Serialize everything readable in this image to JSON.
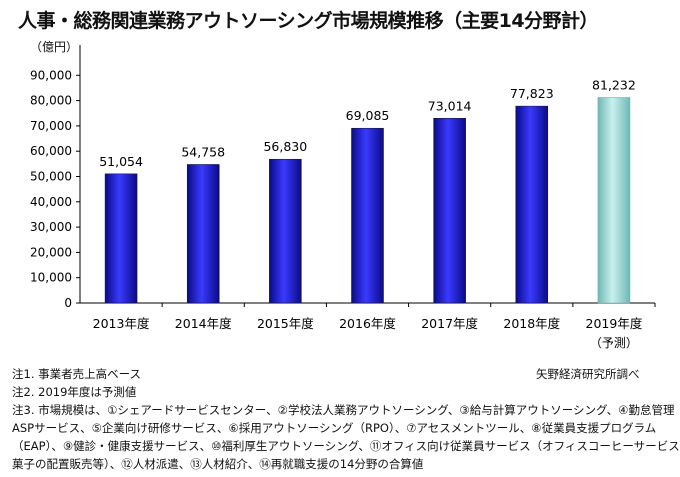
{
  "chart_data": {
    "type": "bar",
    "title": "人事・総務関連業務アウトソーシング市場規模推移（主要14分野計）",
    "ylabel": "（億円）",
    "ylim": [
      0,
      100000
    ],
    "yticks": [
      "0",
      "10,000",
      "20,000",
      "30,000",
      "40,000",
      "50,000",
      "60,000",
      "70,000",
      "80,000",
      "90,000"
    ],
    "categories": [
      "2013年度",
      "2014年度",
      "2015年度",
      "2016年度",
      "2017年度",
      "2018年度",
      "2019年度"
    ],
    "values": [
      51054,
      54758,
      56830,
      69085,
      73014,
      77823,
      81232
    ],
    "data_labels": [
      "51,054",
      "54,758",
      "56,830",
      "69,085",
      "73,014",
      "77,823",
      "81,232"
    ],
    "forecast_label": "（予測）",
    "colors": {
      "actual": "#1f1fbf",
      "forecast": "#9fd6d3"
    }
  },
  "notes": [
    "注1. 事業者売上高ベース",
    "注2. 2019年度は予測値",
    "注3. 市場規模は、①シェアードサービスセンター、②学校法人業務アウトソーシング、③給与計算アウトソーシング、④勤怠管理",
    "ASPサービス、⑤企業向け研修サービス、⑥採用アウトソーシング（RPO）、⑦アセスメントツール、⑧従業員支援プログラム",
    "（EAP）、⑨健診・健康支援サービス、⑩福利厚生アウトソーシング、⑪オフィス向け従業員サービス（オフィスコーヒーサービスや",
    "菓子の配置販売等）、⑫人材派遣、⑬人材紹介、⑭再就職支援の14分野の合算値"
  ],
  "source": "矢野経済研究所調べ"
}
